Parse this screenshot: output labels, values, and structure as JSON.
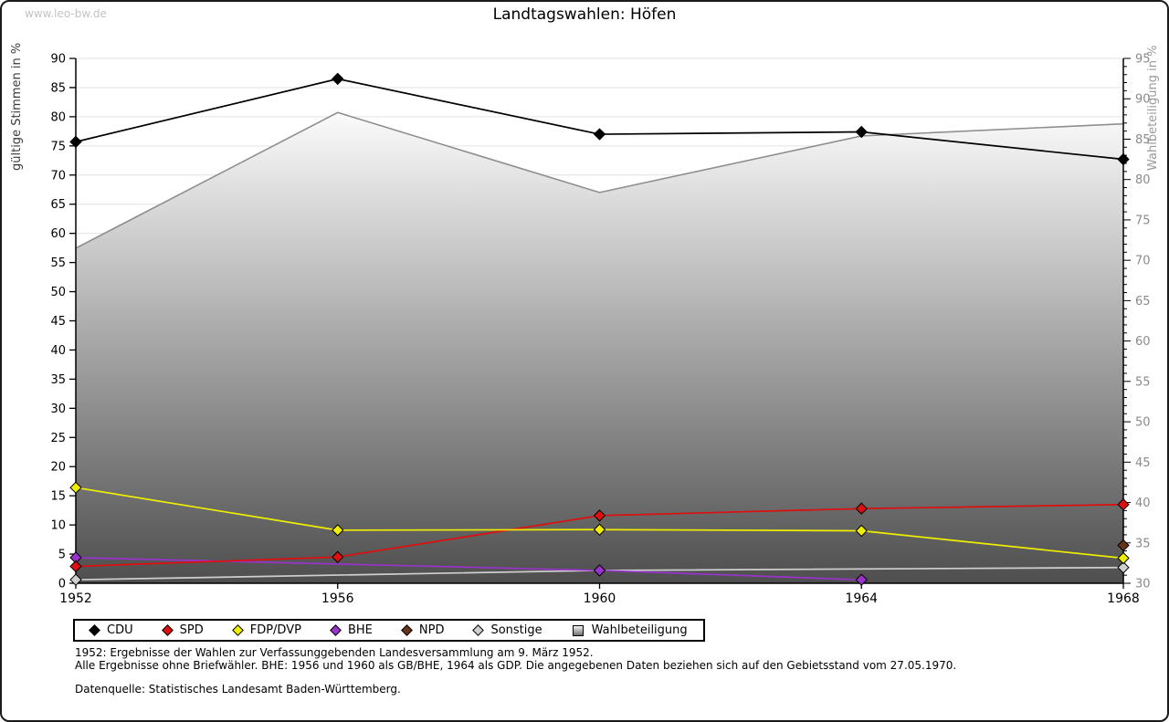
{
  "page": {
    "watermark": "www.leo-bw.de",
    "title": "Landtagswahlen: Höfen"
  },
  "footnotes": {
    "line1": "1952: Ergebnisse der Wahlen zur Verfassunggebenden Landesversammlung am 9. März 1952.",
    "line2": "Alle Ergebnisse ohne Briefwähler. BHE: 1956 und 1960 als GB/BHE, 1964 als GDP. Die angegebenen Daten beziehen sich auf den Gebietsstand vom 27.05.1970.",
    "source": "Datenquelle: Statistisches Landesamt Baden-Württemberg."
  },
  "chart_data": {
    "type": "line",
    "title": "Landtagswahlen: Höfen",
    "x": [
      1952,
      1956,
      1960,
      1964,
      1968
    ],
    "left_axis": {
      "label": "gültige Stimmen in %",
      "min": 0,
      "max": 90,
      "tick_step": 5,
      "color": "#000000"
    },
    "right_axis": {
      "label": "Wahlbeteiligung in %",
      "min": 30,
      "max": 95,
      "tick_step": 5,
      "minor_tick_step": 1,
      "color": "#8a8a8a"
    },
    "grid": {
      "on": true,
      "color": "#e3e3e3"
    },
    "legend_position": "bottom-left",
    "area_series": {
      "name": "Wahlbeteiligung",
      "axis": "right",
      "fill_top": "#fbfbfb",
      "fill_bottom": "#4e4e4e",
      "stroke": "#8e8e8e",
      "points": [
        [
          1952,
          71.5
        ],
        [
          1956,
          88.3
        ],
        [
          1960,
          78.4
        ],
        [
          1964,
          85.4
        ],
        [
          1968,
          86.9
        ]
      ]
    },
    "series": [
      {
        "name": "Sonstige",
        "axis": "left",
        "color": "#cfcfcf",
        "points": [
          [
            1952,
            0.6
          ],
          [
            1960,
            2.2
          ],
          [
            1968,
            2.7
          ]
        ]
      },
      {
        "name": "BHE",
        "axis": "left",
        "color": "#9933cc",
        "points": [
          [
            1952,
            4.4
          ],
          [
            1960,
            2.2
          ],
          [
            1964,
            0.6
          ]
        ]
      },
      {
        "name": "SPD",
        "axis": "left",
        "color": "#dd0f0f",
        "points": [
          [
            1952,
            2.9
          ],
          [
            1956,
            4.5
          ],
          [
            1960,
            11.6
          ],
          [
            1964,
            12.8
          ],
          [
            1968,
            13.5
          ]
        ]
      },
      {
        "name": "FDP/DVP",
        "axis": "left",
        "color": "#f0ee00",
        "points": [
          [
            1952,
            16.4
          ],
          [
            1956,
            9.1
          ],
          [
            1960,
            9.2
          ],
          [
            1964,
            9.0
          ],
          [
            1968,
            4.3
          ]
        ]
      },
      {
        "name": "CDU",
        "axis": "left",
        "color": "#000000",
        "points": [
          [
            1952,
            75.7
          ],
          [
            1956,
            86.5
          ],
          [
            1960,
            77.0
          ],
          [
            1964,
            77.4
          ],
          [
            1968,
            72.7
          ]
        ]
      },
      {
        "name": "NPD",
        "axis": "left",
        "color": "#663319",
        "points": [
          [
            1968,
            6.5
          ]
        ]
      }
    ],
    "legend_items": [
      {
        "label": "CDU",
        "color": "#000000",
        "shape": "diamond"
      },
      {
        "label": "SPD",
        "color": "#dd0f0f",
        "shape": "diamond"
      },
      {
        "label": "FDP/DVP",
        "color": "#f0ee00",
        "shape": "diamond"
      },
      {
        "label": "BHE",
        "color": "#9933cc",
        "shape": "diamond"
      },
      {
        "label": "NPD",
        "color": "#663319",
        "shape": "diamond"
      },
      {
        "label": "Sonstige",
        "color": "#cfcfcf",
        "shape": "diamond"
      },
      {
        "label": "Wahlbeteiligung",
        "color": "#9a9a9a",
        "shape": "square"
      }
    ]
  }
}
